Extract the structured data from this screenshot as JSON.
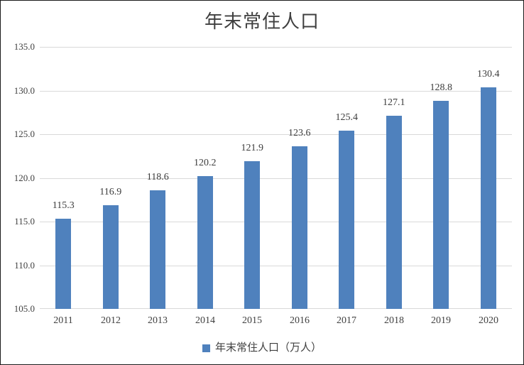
{
  "window": {
    "background": "#ffffff",
    "border_color": "#1a1a1a"
  },
  "chart_data": {
    "type": "bar",
    "title": "年末常住人口",
    "categories": [
      "2011",
      "2012",
      "2013",
      "2014",
      "2015",
      "2016",
      "2017",
      "2018",
      "2019",
      "2020"
    ],
    "series": [
      {
        "name": "年末常住人口（万人）",
        "values": [
          115.3,
          116.9,
          118.6,
          120.2,
          121.9,
          123.6,
          125.4,
          127.1,
          128.8,
          130.4
        ]
      }
    ],
    "data_labels": [
      "115.3",
      "116.9",
      "118.6",
      "120.2",
      "121.9",
      "123.6",
      "125.4",
      "127.1",
      "128.8",
      "130.4"
    ],
    "xlabel": "",
    "ylabel": "",
    "ylim": [
      105.0,
      135.0
    ],
    "ytick_step": 5.0,
    "ytick_values": [
      105,
      110,
      115,
      120,
      125,
      130,
      135
    ],
    "ytick_labels": [
      "105.0",
      "110.0",
      "115.0",
      "120.0",
      "125.0",
      "130.0",
      "135.0"
    ],
    "grid": true,
    "legend_position": "bottom",
    "colors": {
      "bar": "#4f81bd",
      "gridline": "#d9d9d9",
      "axis_line": "#d9d9d9",
      "tick_text": "#404040",
      "data_label_text": "#3d3d3d",
      "title_text": "#3f3f3f"
    }
  },
  "legend": {
    "items": [
      {
        "label": "年末常住人口（万人）",
        "color": "#4f81bd"
      }
    ]
  }
}
